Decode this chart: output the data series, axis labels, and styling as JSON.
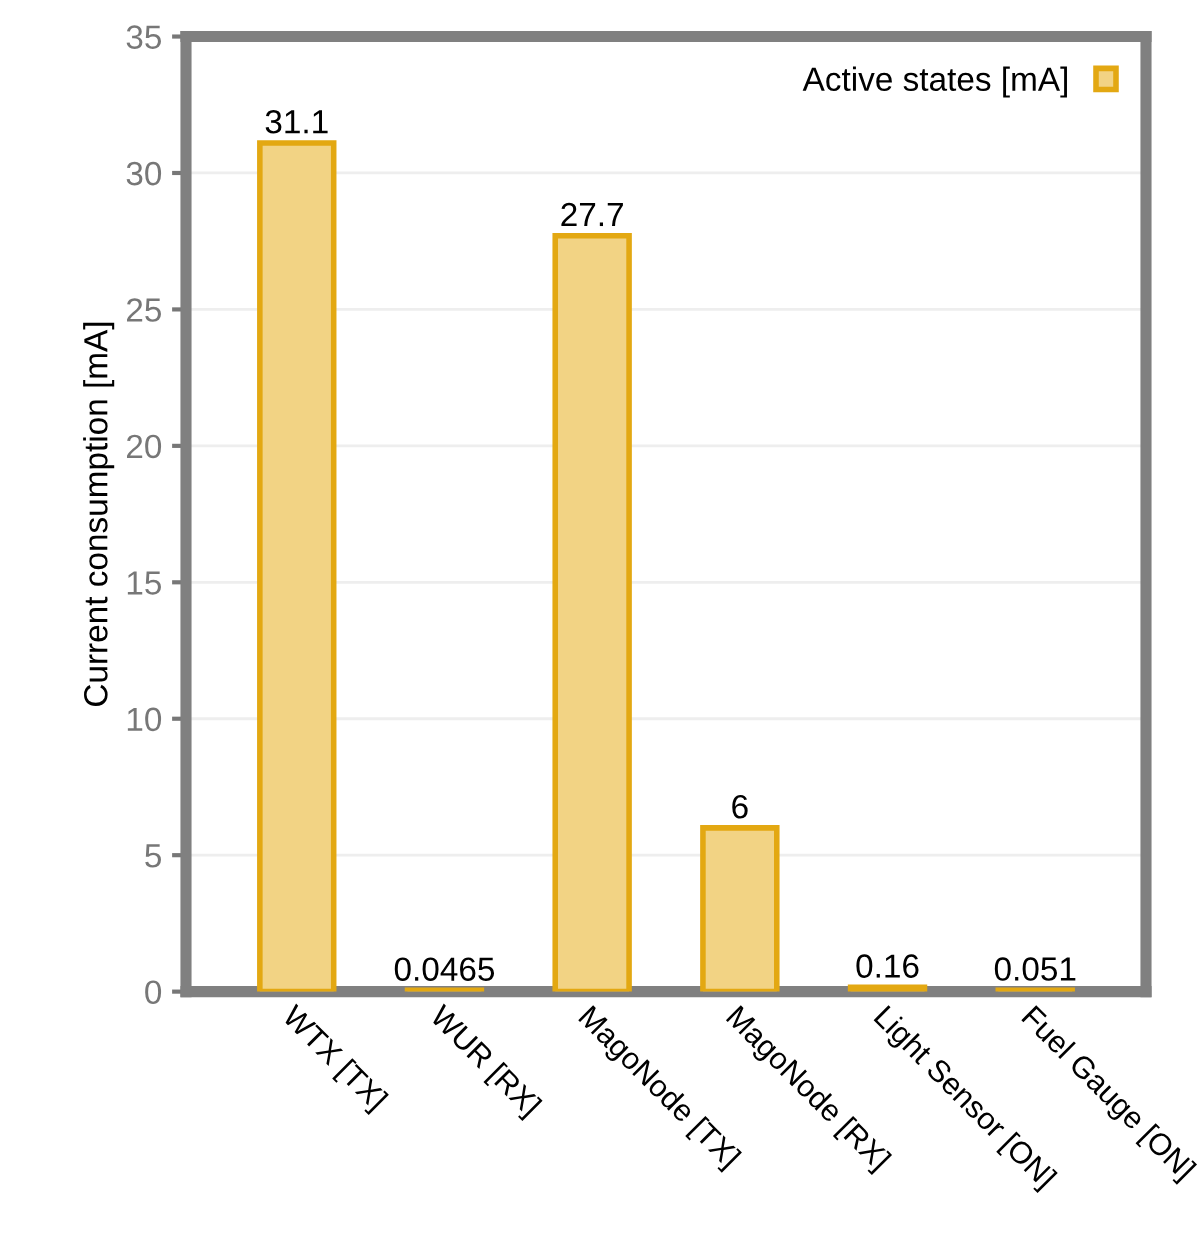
{
  "chart_data": {
    "type": "bar",
    "ylabel": "Current consumption [mA]",
    "categories": [
      "WTX [TX]",
      "WUR [RX]",
      "MagoNode [TX]",
      "MagoNode [RX]",
      "Light Sensor [ON]",
      "Fuel Gauge [ON]"
    ],
    "series": [
      {
        "name": "Active states [mA]",
        "color": "#f2d384",
        "values": [
          31.1,
          0.0465,
          27.7,
          6,
          0.16,
          0.051
        ]
      }
    ],
    "value_labels": [
      "31.1",
      "0.0465",
      "27.7",
      "6",
      "0.16",
      "0.051"
    ],
    "ylim": [
      0,
      35
    ],
    "yticks": [
      0,
      5,
      10,
      15,
      20,
      25,
      30,
      35
    ],
    "grid": "y",
    "legend": "top right"
  }
}
